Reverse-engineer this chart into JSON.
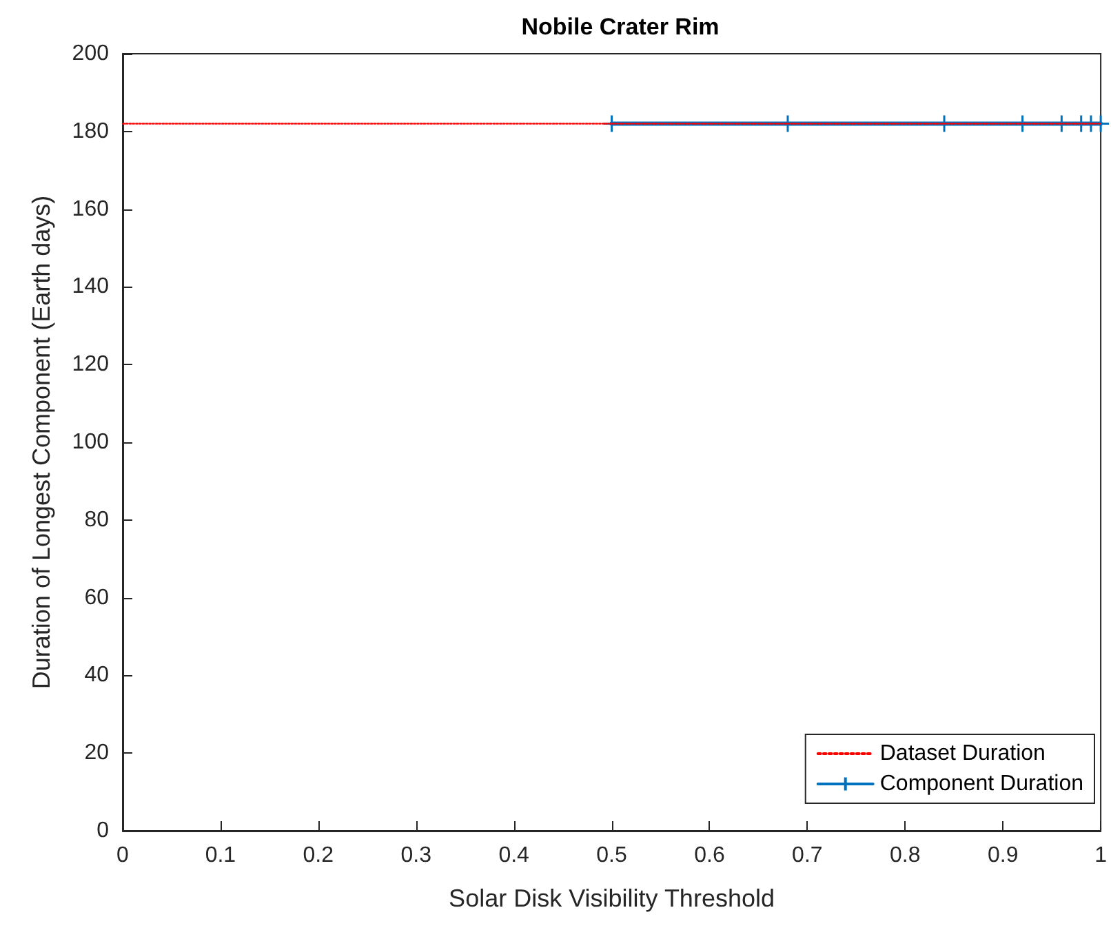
{
  "chart_data": {
    "type": "line",
    "title": "Nobile Crater Rim",
    "xlabel": "Solar Disk Visibility Threshold",
    "ylabel": "Duration of Longest Component (Earth days)",
    "xlim": [
      0,
      1
    ],
    "xticks": [
      0,
      0.1,
      0.2,
      0.3,
      0.4,
      0.5,
      0.6,
      0.7,
      0.8,
      0.9,
      1
    ],
    "ylim": [
      0,
      200
    ],
    "yticks": [
      0,
      20,
      40,
      60,
      80,
      100,
      120,
      140,
      160,
      180,
      200
    ],
    "grid": false,
    "legend": "bottom right",
    "series": [
      {
        "name": "Dataset Duration",
        "color": "#ff0000",
        "x": [
          0,
          1
        ],
        "values": [
          182,
          182
        ],
        "line_style": "dotted",
        "marker": "none"
      },
      {
        "name": "Component Duration",
        "color": "#0072bd",
        "x": [
          0.5,
          0.68,
          0.84,
          0.92,
          0.96,
          0.98,
          0.99,
          1
        ],
        "values": [
          182,
          182,
          182,
          182,
          182,
          182,
          182,
          182
        ],
        "line_style": "solid",
        "marker": "cross"
      }
    ]
  }
}
